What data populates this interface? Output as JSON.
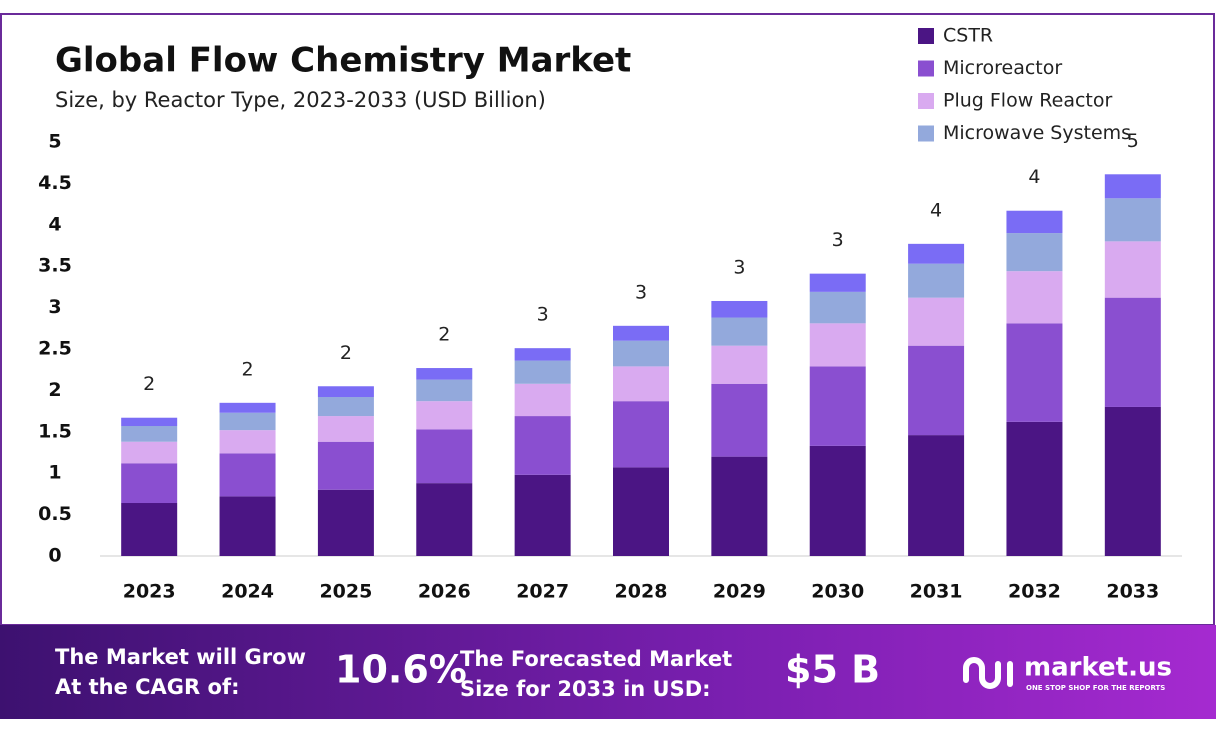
{
  "chart_data": {
    "type": "stacked-bar",
    "title": "Global Flow Chemistry Market",
    "subtitle": "Size, by Reactor Type, 2023-2033 (USD Billion)",
    "categories": [
      "2023",
      "2024",
      "2025",
      "2026",
      "2027",
      "2028",
      "2029",
      "2030",
      "2031",
      "2032",
      "2033"
    ],
    "series": [
      {
        "name": "CSTR",
        "color": "#4b1584",
        "values": [
          0.64,
          0.72,
          0.8,
          0.88,
          0.98,
          1.07,
          1.2,
          1.33,
          1.46,
          1.62,
          1.8
        ]
      },
      {
        "name": "Microreactor",
        "color": "#8a4fd0",
        "values": [
          0.48,
          0.52,
          0.58,
          0.65,
          0.71,
          0.8,
          0.88,
          0.96,
          1.08,
          1.19,
          1.32
        ]
      },
      {
        "name": "Plug Flow Reactor",
        "color": "#d9aaf0",
        "values": [
          0.26,
          0.28,
          0.31,
          0.34,
          0.39,
          0.42,
          0.46,
          0.52,
          0.58,
          0.63,
          0.68
        ]
      },
      {
        "name": "Microwave Systems",
        "color": "#93a9dc",
        "values": [
          0.19,
          0.21,
          0.23,
          0.26,
          0.28,
          0.31,
          0.34,
          0.38,
          0.41,
          0.46,
          0.52
        ]
      },
      {
        "color": "#7a6cf5",
        "values": [
          0.1,
          0.12,
          0.13,
          0.14,
          0.15,
          0.18,
          0.2,
          0.22,
          0.24,
          0.27,
          0.29
        ]
      }
    ],
    "totals": {
      "values": [
        1.67,
        1.85,
        2.05,
        2.27,
        2.51,
        2.78,
        3.08,
        3.41,
        3.77,
        4.17,
        4.61
      ],
      "value_labels": [
        "2",
        "2",
        "2",
        "2",
        "3",
        "3",
        "3",
        "3",
        "4",
        "4",
        "5"
      ]
    },
    "ylim": [
      0,
      5
    ],
    "yticks": [
      0,
      0.5,
      1,
      1.5,
      2,
      2.5,
      3,
      3.5,
      4,
      4.5,
      5
    ],
    "legend": "top-right"
  },
  "footer": {
    "cagr_text": [
      "The Market will Grow",
      "At the CAGR of:"
    ],
    "cagr": "10.6%",
    "forecast_text": [
      "The Forecasted Market",
      "Size for 2033 in USD:"
    ],
    "forecast": "$5 B",
    "brand": "market.us",
    "tagline": "ONE STOP SHOP FOR THE REPORTS"
  }
}
